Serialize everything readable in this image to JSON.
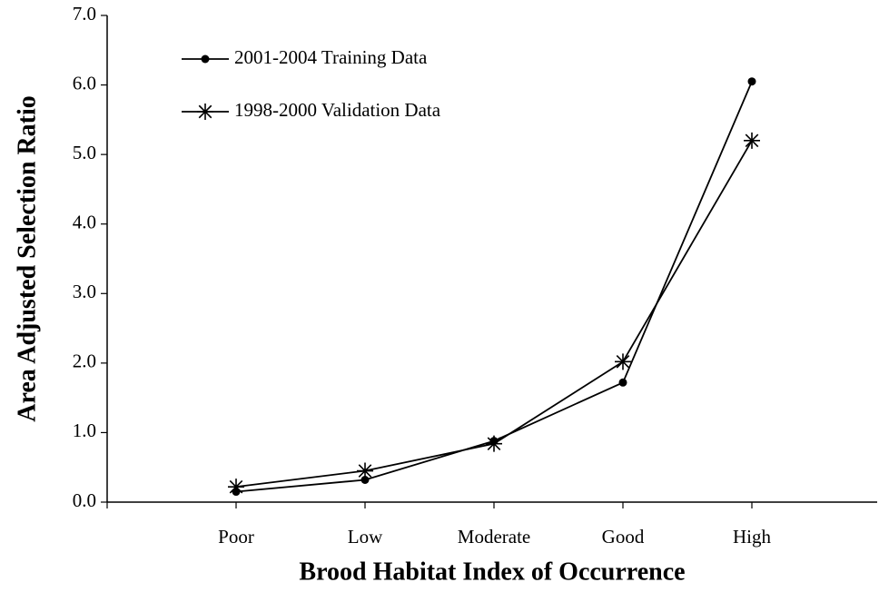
{
  "chart_data": {
    "type": "line",
    "x_label": "Brood Habitat Index of Occurrence",
    "y_label": "Area Adjusted Selection Ratio",
    "categories": [
      "Poor",
      "Low",
      "Moderate",
      "Good",
      "High"
    ],
    "series": [
      {
        "name": "2001-2004 Training Data",
        "color": "#000000",
        "marker": "dot",
        "values": [
          0.15,
          0.32,
          0.88,
          1.72,
          6.05
        ]
      },
      {
        "name": "1998-2000 Validation Data",
        "color": "#000000",
        "marker": "asterisk",
        "values": [
          0.22,
          0.45,
          0.84,
          2.02,
          5.2
        ]
      }
    ],
    "ylim": [
      0,
      7
    ],
    "yticks": [
      {
        "value": 0,
        "label": "0.0"
      },
      {
        "value": 1,
        "label": "1.0"
      },
      {
        "value": 2,
        "label": "2.0"
      },
      {
        "value": 3,
        "label": "3.0"
      },
      {
        "value": 4,
        "label": "4.0"
      },
      {
        "value": 5,
        "label": "5.0"
      },
      {
        "value": 6,
        "label": "6.0"
      },
      {
        "value": 7,
        "label": "7.0"
      }
    ],
    "legend": "upper left",
    "grid": false
  }
}
